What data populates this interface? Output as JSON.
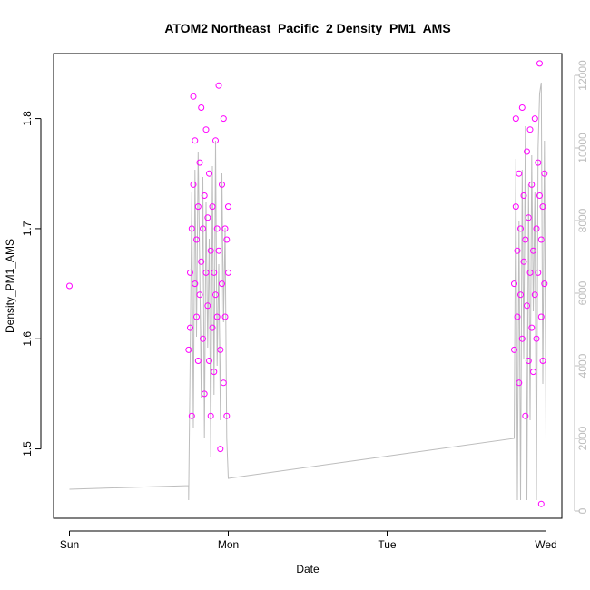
{
  "chart_data": {
    "type": "scatter",
    "title": "ATOM2 Northeast_Pacific_2 Density_PM1_AMS",
    "xlabel": "Date",
    "ylabel": "Density_PM1_AMS",
    "x_ticks": [
      {
        "value": 0,
        "label": "Sun"
      },
      {
        "value": 1,
        "label": "Mon"
      },
      {
        "value": 2,
        "label": "Tue"
      },
      {
        "value": 3,
        "label": "Wed"
      }
    ],
    "y_ticks": [
      1.5,
      1.6,
      1.7,
      1.8
    ],
    "y_tick_labels": [
      "1.5",
      "1.6",
      "1.7",
      "1.8"
    ],
    "y2_ticks": [
      0,
      2000,
      4000,
      6000,
      8000,
      10000,
      12000
    ],
    "y2_tick_labels": [
      "0",
      "2000",
      "4000",
      "6000",
      "8000",
      "10000",
      "12000"
    ],
    "xlim": [
      -0.1,
      3.1
    ],
    "ylim": [
      1.437,
      1.859
    ],
    "y2lim": [
      -200,
      12600
    ],
    "colors": {
      "points": "#ff00ff",
      "line": "#bdbdbd",
      "axes": "#000000",
      "secondary_axis": "#bdbdbd"
    },
    "series": [
      {
        "type": "scatter",
        "points": [
          [
            0.0,
            1.648
          ],
          [
            0.75,
            1.59
          ],
          [
            0.76,
            1.61
          ],
          [
            0.76,
            1.66
          ],
          [
            0.77,
            1.53
          ],
          [
            0.77,
            1.7
          ],
          [
            0.78,
            1.74
          ],
          [
            0.78,
            1.82
          ],
          [
            0.79,
            1.78
          ],
          [
            0.79,
            1.65
          ],
          [
            0.8,
            1.62
          ],
          [
            0.8,
            1.69
          ],
          [
            0.81,
            1.58
          ],
          [
            0.81,
            1.72
          ],
          [
            0.82,
            1.76
          ],
          [
            0.82,
            1.64
          ],
          [
            0.83,
            1.67
          ],
          [
            0.83,
            1.81
          ],
          [
            0.84,
            1.7
          ],
          [
            0.84,
            1.6
          ],
          [
            0.85,
            1.55
          ],
          [
            0.85,
            1.73
          ],
          [
            0.86,
            1.79
          ],
          [
            0.86,
            1.66
          ],
          [
            0.87,
            1.63
          ],
          [
            0.87,
            1.71
          ],
          [
            0.88,
            1.75
          ],
          [
            0.88,
            1.58
          ],
          [
            0.89,
            1.53
          ],
          [
            0.89,
            1.68
          ],
          [
            0.9,
            1.61
          ],
          [
            0.9,
            1.72
          ],
          [
            0.91,
            1.66
          ],
          [
            0.91,
            1.57
          ],
          [
            0.92,
            1.64
          ],
          [
            0.92,
            1.78
          ],
          [
            0.93,
            1.7
          ],
          [
            0.93,
            1.62
          ],
          [
            0.94,
            1.83
          ],
          [
            0.94,
            1.68
          ],
          [
            0.95,
            1.59
          ],
          [
            0.95,
            1.5
          ],
          [
            0.96,
            1.74
          ],
          [
            0.96,
            1.65
          ],
          [
            0.97,
            1.8
          ],
          [
            0.97,
            1.56
          ],
          [
            0.98,
            1.7
          ],
          [
            0.98,
            1.62
          ],
          [
            0.99,
            1.69
          ],
          [
            0.99,
            1.53
          ],
          [
            1.0,
            1.66
          ],
          [
            1.0,
            1.72
          ],
          [
            2.8,
            1.65
          ],
          [
            2.8,
            1.59
          ],
          [
            2.81,
            1.72
          ],
          [
            2.81,
            1.8
          ],
          [
            2.82,
            1.62
          ],
          [
            2.82,
            1.68
          ],
          [
            2.83,
            1.75
          ],
          [
            2.83,
            1.56
          ],
          [
            2.84,
            1.7
          ],
          [
            2.84,
            1.64
          ],
          [
            2.85,
            1.81
          ],
          [
            2.85,
            1.6
          ],
          [
            2.86,
            1.73
          ],
          [
            2.86,
            1.67
          ],
          [
            2.87,
            1.53
          ],
          [
            2.87,
            1.69
          ],
          [
            2.88,
            1.77
          ],
          [
            2.88,
            1.63
          ],
          [
            2.89,
            1.58
          ],
          [
            2.89,
            1.71
          ],
          [
            2.9,
            1.66
          ],
          [
            2.9,
            1.79
          ],
          [
            2.91,
            1.61
          ],
          [
            2.91,
            1.74
          ],
          [
            2.92,
            1.68
          ],
          [
            2.92,
            1.57
          ],
          [
            2.93,
            1.8
          ],
          [
            2.93,
            1.64
          ],
          [
            2.94,
            1.7
          ],
          [
            2.94,
            1.6
          ],
          [
            2.95,
            1.76
          ],
          [
            2.95,
            1.66
          ],
          [
            2.96,
            1.73
          ],
          [
            2.96,
            1.85
          ],
          [
            2.97,
            1.62
          ],
          [
            2.97,
            1.69
          ],
          [
            2.98,
            1.58
          ],
          [
            2.98,
            1.72
          ],
          [
            2.99,
            1.65
          ],
          [
            2.99,
            1.75
          ],
          [
            2.97,
            1.45
          ]
        ]
      },
      {
        "type": "line",
        "axis": "right",
        "points": [
          [
            0.0,
            600
          ],
          [
            0.75,
            700
          ],
          [
            0.75,
            300
          ],
          [
            0.76,
            4200
          ],
          [
            0.77,
            8800
          ],
          [
            0.78,
            2300
          ],
          [
            0.79,
            9400
          ],
          [
            0.8,
            4800
          ],
          [
            0.81,
            9900
          ],
          [
            0.82,
            6800
          ],
          [
            0.83,
            3100
          ],
          [
            0.84,
            9200
          ],
          [
            0.85,
            2000
          ],
          [
            0.86,
            8500
          ],
          [
            0.87,
            4500
          ],
          [
            0.88,
            7500
          ],
          [
            0.89,
            1500
          ],
          [
            0.9,
            9500
          ],
          [
            0.91,
            3200
          ],
          [
            0.92,
            10200
          ],
          [
            0.93,
            4000
          ],
          [
            0.94,
            6800
          ],
          [
            0.95,
            2500
          ],
          [
            0.96,
            9300
          ],
          [
            0.97,
            5200
          ],
          [
            0.98,
            7800
          ],
          [
            0.99,
            2000
          ],
          [
            1.0,
            900
          ],
          [
            2.8,
            2000
          ],
          [
            2.81,
            9700
          ],
          [
            2.82,
            300
          ],
          [
            2.83,
            8000
          ],
          [
            2.84,
            300
          ],
          [
            2.85,
            9400
          ],
          [
            2.86,
            4200
          ],
          [
            2.87,
            10600
          ],
          [
            2.88,
            300
          ],
          [
            2.89,
            9000
          ],
          [
            2.9,
            2500
          ],
          [
            2.91,
            9800
          ],
          [
            2.92,
            5500
          ],
          [
            2.93,
            8800
          ],
          [
            2.94,
            300
          ],
          [
            2.95,
            10000
          ],
          [
            2.96,
            11500
          ],
          [
            2.97,
            11800
          ],
          [
            2.98,
            3500
          ],
          [
            2.99,
            10200
          ],
          [
            3.0,
            2000
          ]
        ]
      }
    ]
  }
}
